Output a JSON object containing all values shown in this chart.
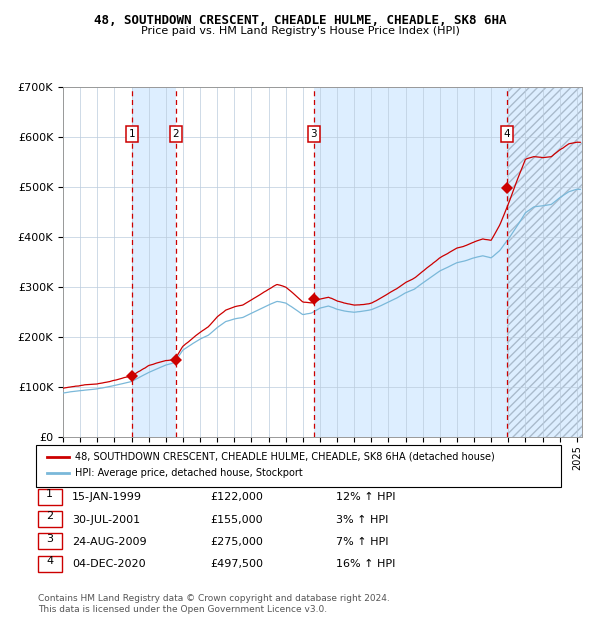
{
  "title": "48, SOUTHDOWN CRESCENT, CHEADLE HULME, CHEADLE, SK8 6HA",
  "subtitle": "Price paid vs. HM Land Registry's House Price Index (HPI)",
  "transactions": [
    {
      "num": 1,
      "date": "15-JAN-1999",
      "price": 122000,
      "pct": "12%",
      "year_x": 1999.04
    },
    {
      "num": 2,
      "date": "30-JUL-2001",
      "price": 155000,
      "pct": "3%",
      "year_x": 2001.58
    },
    {
      "num": 3,
      "date": "24-AUG-2009",
      "price": 275000,
      "pct": "7%",
      "year_x": 2009.65
    },
    {
      "num": 4,
      "date": "04-DEC-2020",
      "price": 497500,
      "pct": "16%",
      "year_x": 2020.92
    }
  ],
  "footer_line1": "Contains HM Land Registry data © Crown copyright and database right 2024.",
  "footer_line2": "This data is licensed under the Open Government Licence v3.0.",
  "legend_label1": "48, SOUTHDOWN CRESCENT, CHEADLE HULME, CHEADLE, SK8 6HA (detached house)",
  "legend_label2": "HPI: Average price, detached house, Stockport",
  "hpi_color": "#7ab8d9",
  "price_color": "#cc0000",
  "chart_bg": "#ddeeff",
  "ylim": [
    0,
    700000
  ],
  "xlim_start": 1995.0,
  "xlim_end": 2025.3,
  "hpi_anchors": [
    [
      1995.0,
      88000
    ],
    [
      1996.0,
      93000
    ],
    [
      1997.0,
      97000
    ],
    [
      1998.0,
      104000
    ],
    [
      1999.0,
      112000
    ],
    [
      2000.0,
      130000
    ],
    [
      2001.0,
      145000
    ],
    [
      2001.5,
      150000
    ],
    [
      2002.0,
      175000
    ],
    [
      2003.0,
      197000
    ],
    [
      2003.5,
      205000
    ],
    [
      2004.0,
      220000
    ],
    [
      2004.5,
      232000
    ],
    [
      2005.0,
      237000
    ],
    [
      2005.5,
      240000
    ],
    [
      2006.0,
      248000
    ],
    [
      2007.0,
      265000
    ],
    [
      2007.5,
      272000
    ],
    [
      2008.0,
      268000
    ],
    [
      2008.5,
      257000
    ],
    [
      2009.0,
      245000
    ],
    [
      2009.5,
      248000
    ],
    [
      2010.0,
      258000
    ],
    [
      2010.5,
      262000
    ],
    [
      2011.0,
      256000
    ],
    [
      2011.5,
      252000
    ],
    [
      2012.0,
      250000
    ],
    [
      2012.5,
      252000
    ],
    [
      2013.0,
      255000
    ],
    [
      2013.5,
      262000
    ],
    [
      2014.0,
      270000
    ],
    [
      2014.5,
      278000
    ],
    [
      2015.0,
      288000
    ],
    [
      2015.5,
      295000
    ],
    [
      2016.0,
      308000
    ],
    [
      2016.5,
      320000
    ],
    [
      2017.0,
      332000
    ],
    [
      2017.5,
      340000
    ],
    [
      2018.0,
      348000
    ],
    [
      2018.5,
      352000
    ],
    [
      2019.0,
      358000
    ],
    [
      2019.5,
      362000
    ],
    [
      2020.0,
      358000
    ],
    [
      2020.5,
      372000
    ],
    [
      2021.0,
      395000
    ],
    [
      2021.5,
      420000
    ],
    [
      2022.0,
      448000
    ],
    [
      2022.5,
      460000
    ],
    [
      2023.0,
      462000
    ],
    [
      2023.5,
      465000
    ],
    [
      2024.0,
      478000
    ],
    [
      2024.5,
      490000
    ],
    [
      2025.0,
      495000
    ]
  ],
  "price_scale_anchors": [
    [
      1995.0,
      1.11
    ],
    [
      1998.0,
      1.1
    ],
    [
      1999.1,
      1.09
    ],
    [
      2000.0,
      1.1
    ],
    [
      2001.6,
      1.03
    ],
    [
      2002.5,
      1.05
    ],
    [
      2004.0,
      1.09
    ],
    [
      2006.0,
      1.1
    ],
    [
      2007.5,
      1.12
    ],
    [
      2009.0,
      1.1
    ],
    [
      2009.7,
      1.07
    ],
    [
      2011.0,
      1.06
    ],
    [
      2013.0,
      1.05
    ],
    [
      2015.0,
      1.07
    ],
    [
      2017.0,
      1.08
    ],
    [
      2019.0,
      1.09
    ],
    [
      2020.0,
      1.1
    ],
    [
      2021.0,
      1.18
    ],
    [
      2021.5,
      1.22
    ],
    [
      2022.0,
      1.24
    ],
    [
      2022.5,
      1.22
    ],
    [
      2023.0,
      1.21
    ],
    [
      2024.0,
      1.2
    ],
    [
      2025.0,
      1.19
    ]
  ]
}
